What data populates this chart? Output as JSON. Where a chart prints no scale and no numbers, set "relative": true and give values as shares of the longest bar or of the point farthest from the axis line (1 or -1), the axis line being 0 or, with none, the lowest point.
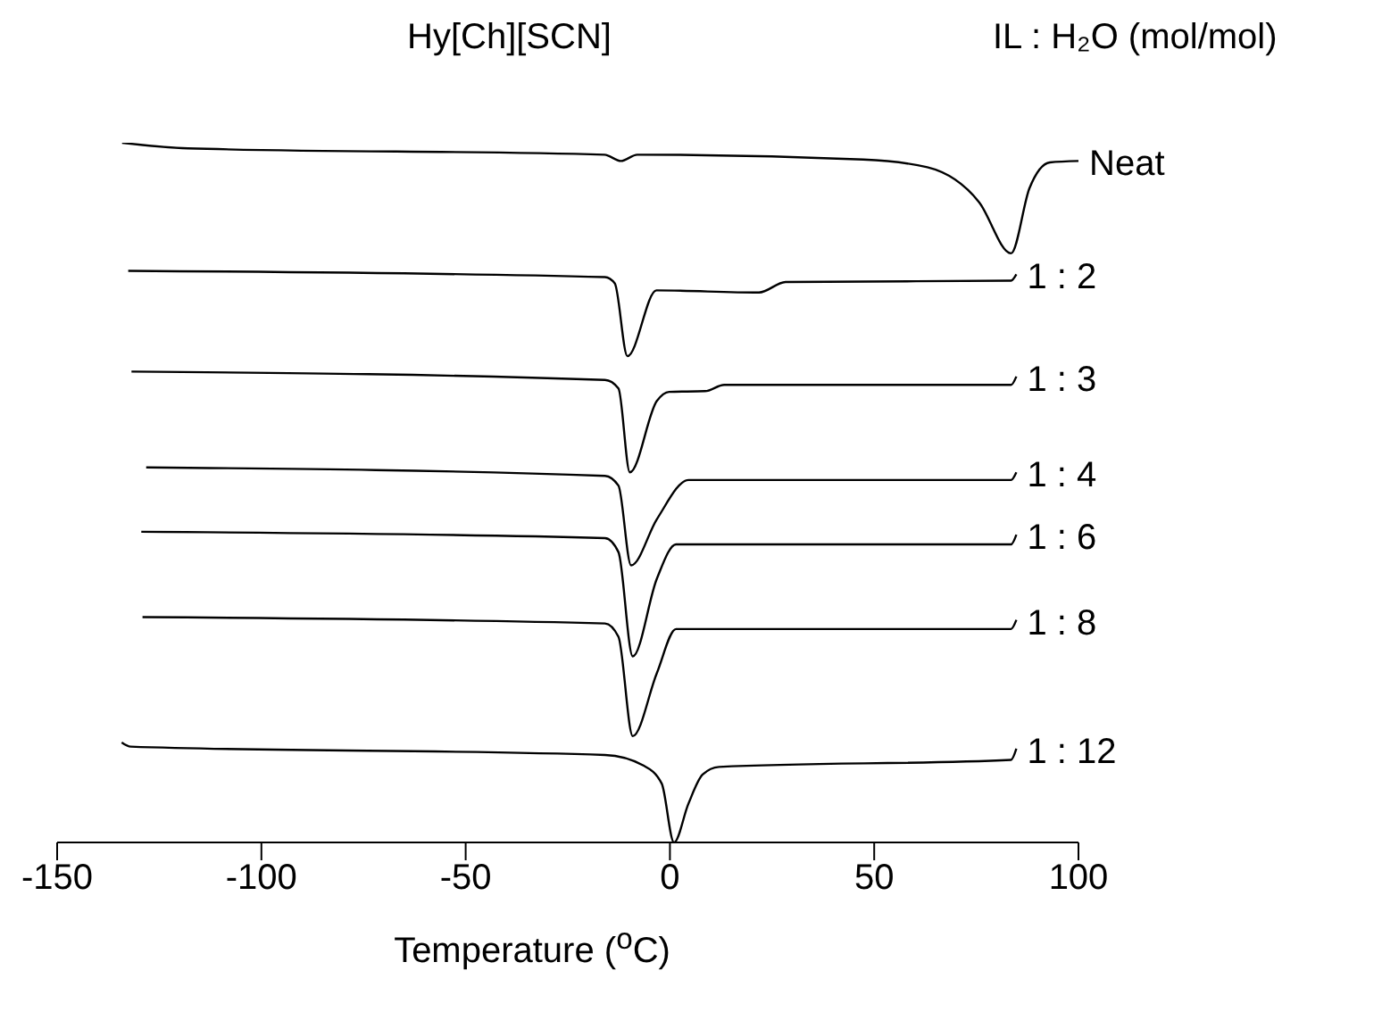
{
  "chart_data": {
    "type": "line",
    "title": "Hy[Ch][SCN]",
    "legend_title": "IL : H₂O (mol/mol)",
    "xlabel": "Temperature ($^{o}$C)",
    "relative": true,
    "xlim": [
      -150,
      100
    ],
    "xticks": [
      -150,
      -100,
      -50,
      0,
      50,
      100
    ],
    "grid": false,
    "legend": false,
    "marker": "none",
    "line_style": "solid",
    "series": [
      {
        "name": "Neat",
        "color": "#000000",
        "x": [
          -134.1,
          -118,
          -16,
          -12,
          -8,
          47.3,
          63,
          75.7,
          83.5,
          88,
          93,
          100
        ],
        "values": [
          1.0,
          0.992,
          0.983,
          0.974,
          0.983,
          0.976,
          0.965,
          0.915,
          0.842,
          0.935,
          0.972,
          0.974
        ]
      },
      {
        "name": "1 : 2",
        "color": "#000000",
        "x": [
          -132.6,
          -15.9,
          -13.5,
          -10.4,
          -3.3,
          21.8,
          28.3,
          83.5,
          84.8
        ],
        "values": [
          0.817,
          0.808,
          0.799,
          0.695,
          0.789,
          0.786,
          0.801,
          0.803,
          0.812
        ]
      },
      {
        "name": "1 : 3",
        "color": "#000000",
        "x": [
          -131.8,
          -15.9,
          -12.6,
          -9.8,
          -3.2,
          -0.2,
          8.6,
          13.3,
          83.5,
          84.8
        ],
        "values": [
          0.673,
          0.661,
          0.649,
          0.529,
          0.631,
          0.644,
          0.645,
          0.654,
          0.654,
          0.666
        ]
      },
      {
        "name": "1 : 4",
        "color": "#000000",
        "x": [
          -128.2,
          -15.9,
          -12.6,
          -9.5,
          -3.2,
          4.6,
          83.5,
          84.8
        ],
        "values": [
          0.536,
          0.524,
          0.51,
          0.396,
          0.462,
          0.518,
          0.518,
          0.529
        ]
      },
      {
        "name": "1 : 6",
        "color": "#000000",
        "x": [
          -129.4,
          -15.9,
          -12.6,
          -9.1,
          -3.2,
          1.5,
          83.5,
          84.8
        ],
        "values": [
          0.444,
          0.435,
          0.415,
          0.266,
          0.377,
          0.426,
          0.426,
          0.44
        ]
      },
      {
        "name": "1 : 8",
        "color": "#000000",
        "x": [
          -129.1,
          -15.9,
          -12.6,
          -9.1,
          -3.2,
          1.5,
          83.5,
          84.8
        ],
        "values": [
          0.322,
          0.313,
          0.294,
          0.152,
          0.242,
          0.305,
          0.305,
          0.318
        ]
      },
      {
        "name": "1 : 12",
        "color": "#000000",
        "x": [
          -134.2,
          -132,
          -15.9,
          -6.5,
          -2,
          1,
          4.5,
          8,
          12,
          83.5,
          84.8
        ],
        "values": [
          0.143,
          0.137,
          0.125,
          0.11,
          0.084,
          0,
          0.055,
          0.097,
          0.108,
          0.118,
          0.134
        ]
      }
    ]
  }
}
